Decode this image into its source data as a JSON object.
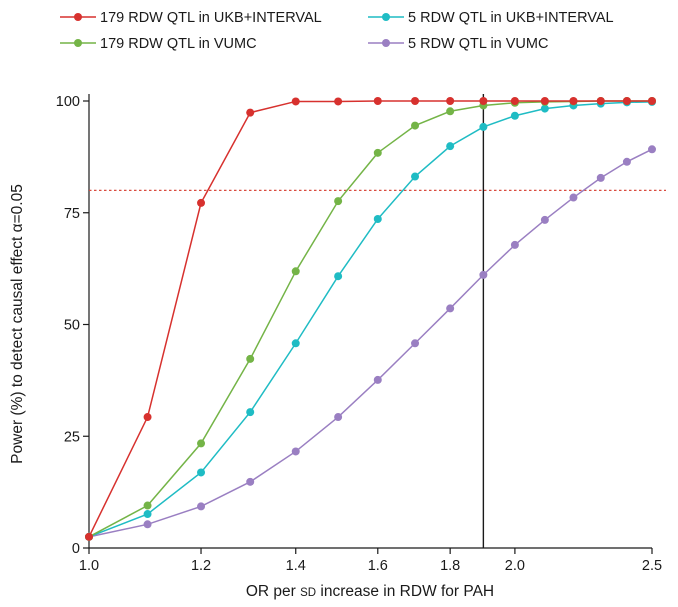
{
  "chart_data": {
    "type": "line",
    "title": "",
    "xlabel": "OR per SD increase in RDW for PAH",
    "xlabel_parts": {
      "before": "OR per ",
      "smallcaps": "SD",
      "after": " increase in RDW for PAH"
    },
    "ylabel": "Power (%) to detect causal effect α=0.05",
    "xlim": [
      1.0,
      2.5
    ],
    "ylim": [
      0,
      100
    ],
    "x_ticks": [
      1.0,
      1.2,
      1.4,
      1.6,
      1.8,
      2.0,
      2.5
    ],
    "x_tick_labels": [
      "1.0",
      "1.2",
      "1.4",
      "1.6",
      "1.8",
      "2.0",
      "2.5"
    ],
    "y_ticks": [
      0,
      25,
      50,
      75,
      100
    ],
    "y_tick_labels": [
      "0",
      "25",
      "50",
      "75",
      "100"
    ],
    "x": [
      1.0,
      1.1,
      1.2,
      1.3,
      1.4,
      1.5,
      1.6,
      1.7,
      1.8,
      1.9,
      2.0,
      2.1,
      2.2,
      2.3,
      2.4,
      2.5
    ],
    "x_scale": "log",
    "reference_lines": [
      {
        "orientation": "horizontal",
        "value": 80,
        "style": "dotted",
        "color": "#d94b3f"
      },
      {
        "orientation": "vertical",
        "value": 1.9,
        "style": "solid",
        "color": "#1a1a1a"
      }
    ],
    "legend_position": "top",
    "grid": false,
    "series": [
      {
        "name": "179 RDW QTL in UKB+INTERVAL",
        "color": "#d7312e",
        "values": [
          2.5,
          29.3,
          77.2,
          97.4,
          99.9,
          99.9,
          100,
          100,
          100,
          100,
          100,
          100,
          100,
          100,
          100,
          100
        ]
      },
      {
        "name": "5 RDW QTL in UKB+INTERVAL",
        "color": "#1fbcc4",
        "values": [
          2.5,
          7.6,
          16.9,
          30.4,
          45.8,
          60.8,
          73.6,
          83.1,
          89.9,
          94.2,
          96.7,
          98.3,
          99.0,
          99.4,
          99.7,
          99.8
        ]
      },
      {
        "name": "179 RDW QTL in VUMC",
        "color": "#74b447",
        "values": [
          2.5,
          9.5,
          23.4,
          42.3,
          61.9,
          77.6,
          88.4,
          94.5,
          97.7,
          99.0,
          99.6,
          99.8,
          99.9,
          100,
          100,
          100
        ]
      },
      {
        "name": "5 RDW QTL in VUMC",
        "color": "#9a7fc2",
        "values": [
          2.5,
          5.3,
          9.3,
          14.8,
          21.6,
          29.3,
          37.6,
          45.8,
          53.6,
          61.1,
          67.8,
          73.4,
          78.4,
          82.8,
          86.4,
          89.2
        ]
      }
    ]
  }
}
